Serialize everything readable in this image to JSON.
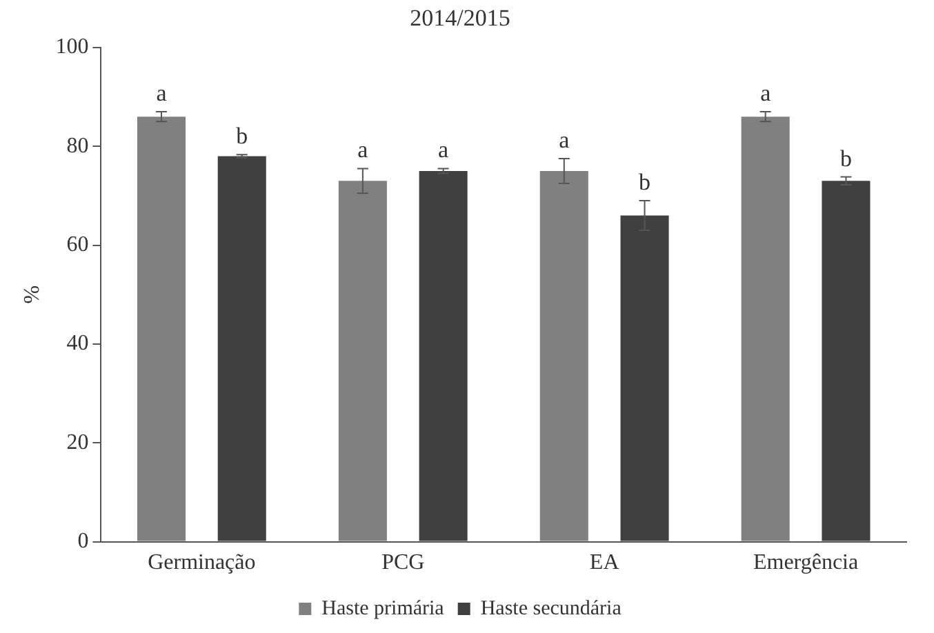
{
  "chart_data": {
    "type": "bar",
    "title": "2014/2015",
    "ylabel": "%",
    "categories": [
      "Germinação",
      "PCG",
      "EA",
      "Emergência"
    ],
    "series": [
      {
        "name": "Haste primária",
        "color": "#808080",
        "values": [
          86,
          73,
          75,
          86
        ],
        "errors": [
          1,
          2.5,
          2.5,
          1
        ],
        "value_labels": [
          "a",
          "a",
          "a",
          "a"
        ]
      },
      {
        "name": "Haste secundária",
        "color": "#404040",
        "values": [
          78,
          75,
          66,
          73
        ],
        "errors": [
          0.3,
          0.5,
          3,
          0.8
        ],
        "value_labels": [
          "b",
          "a",
          "b",
          "b"
        ]
      }
    ],
    "ylim": [
      0,
      100
    ],
    "yticks": [
      0,
      20,
      40,
      60,
      80,
      100
    ],
    "grid": false,
    "legend": "bottom"
  }
}
